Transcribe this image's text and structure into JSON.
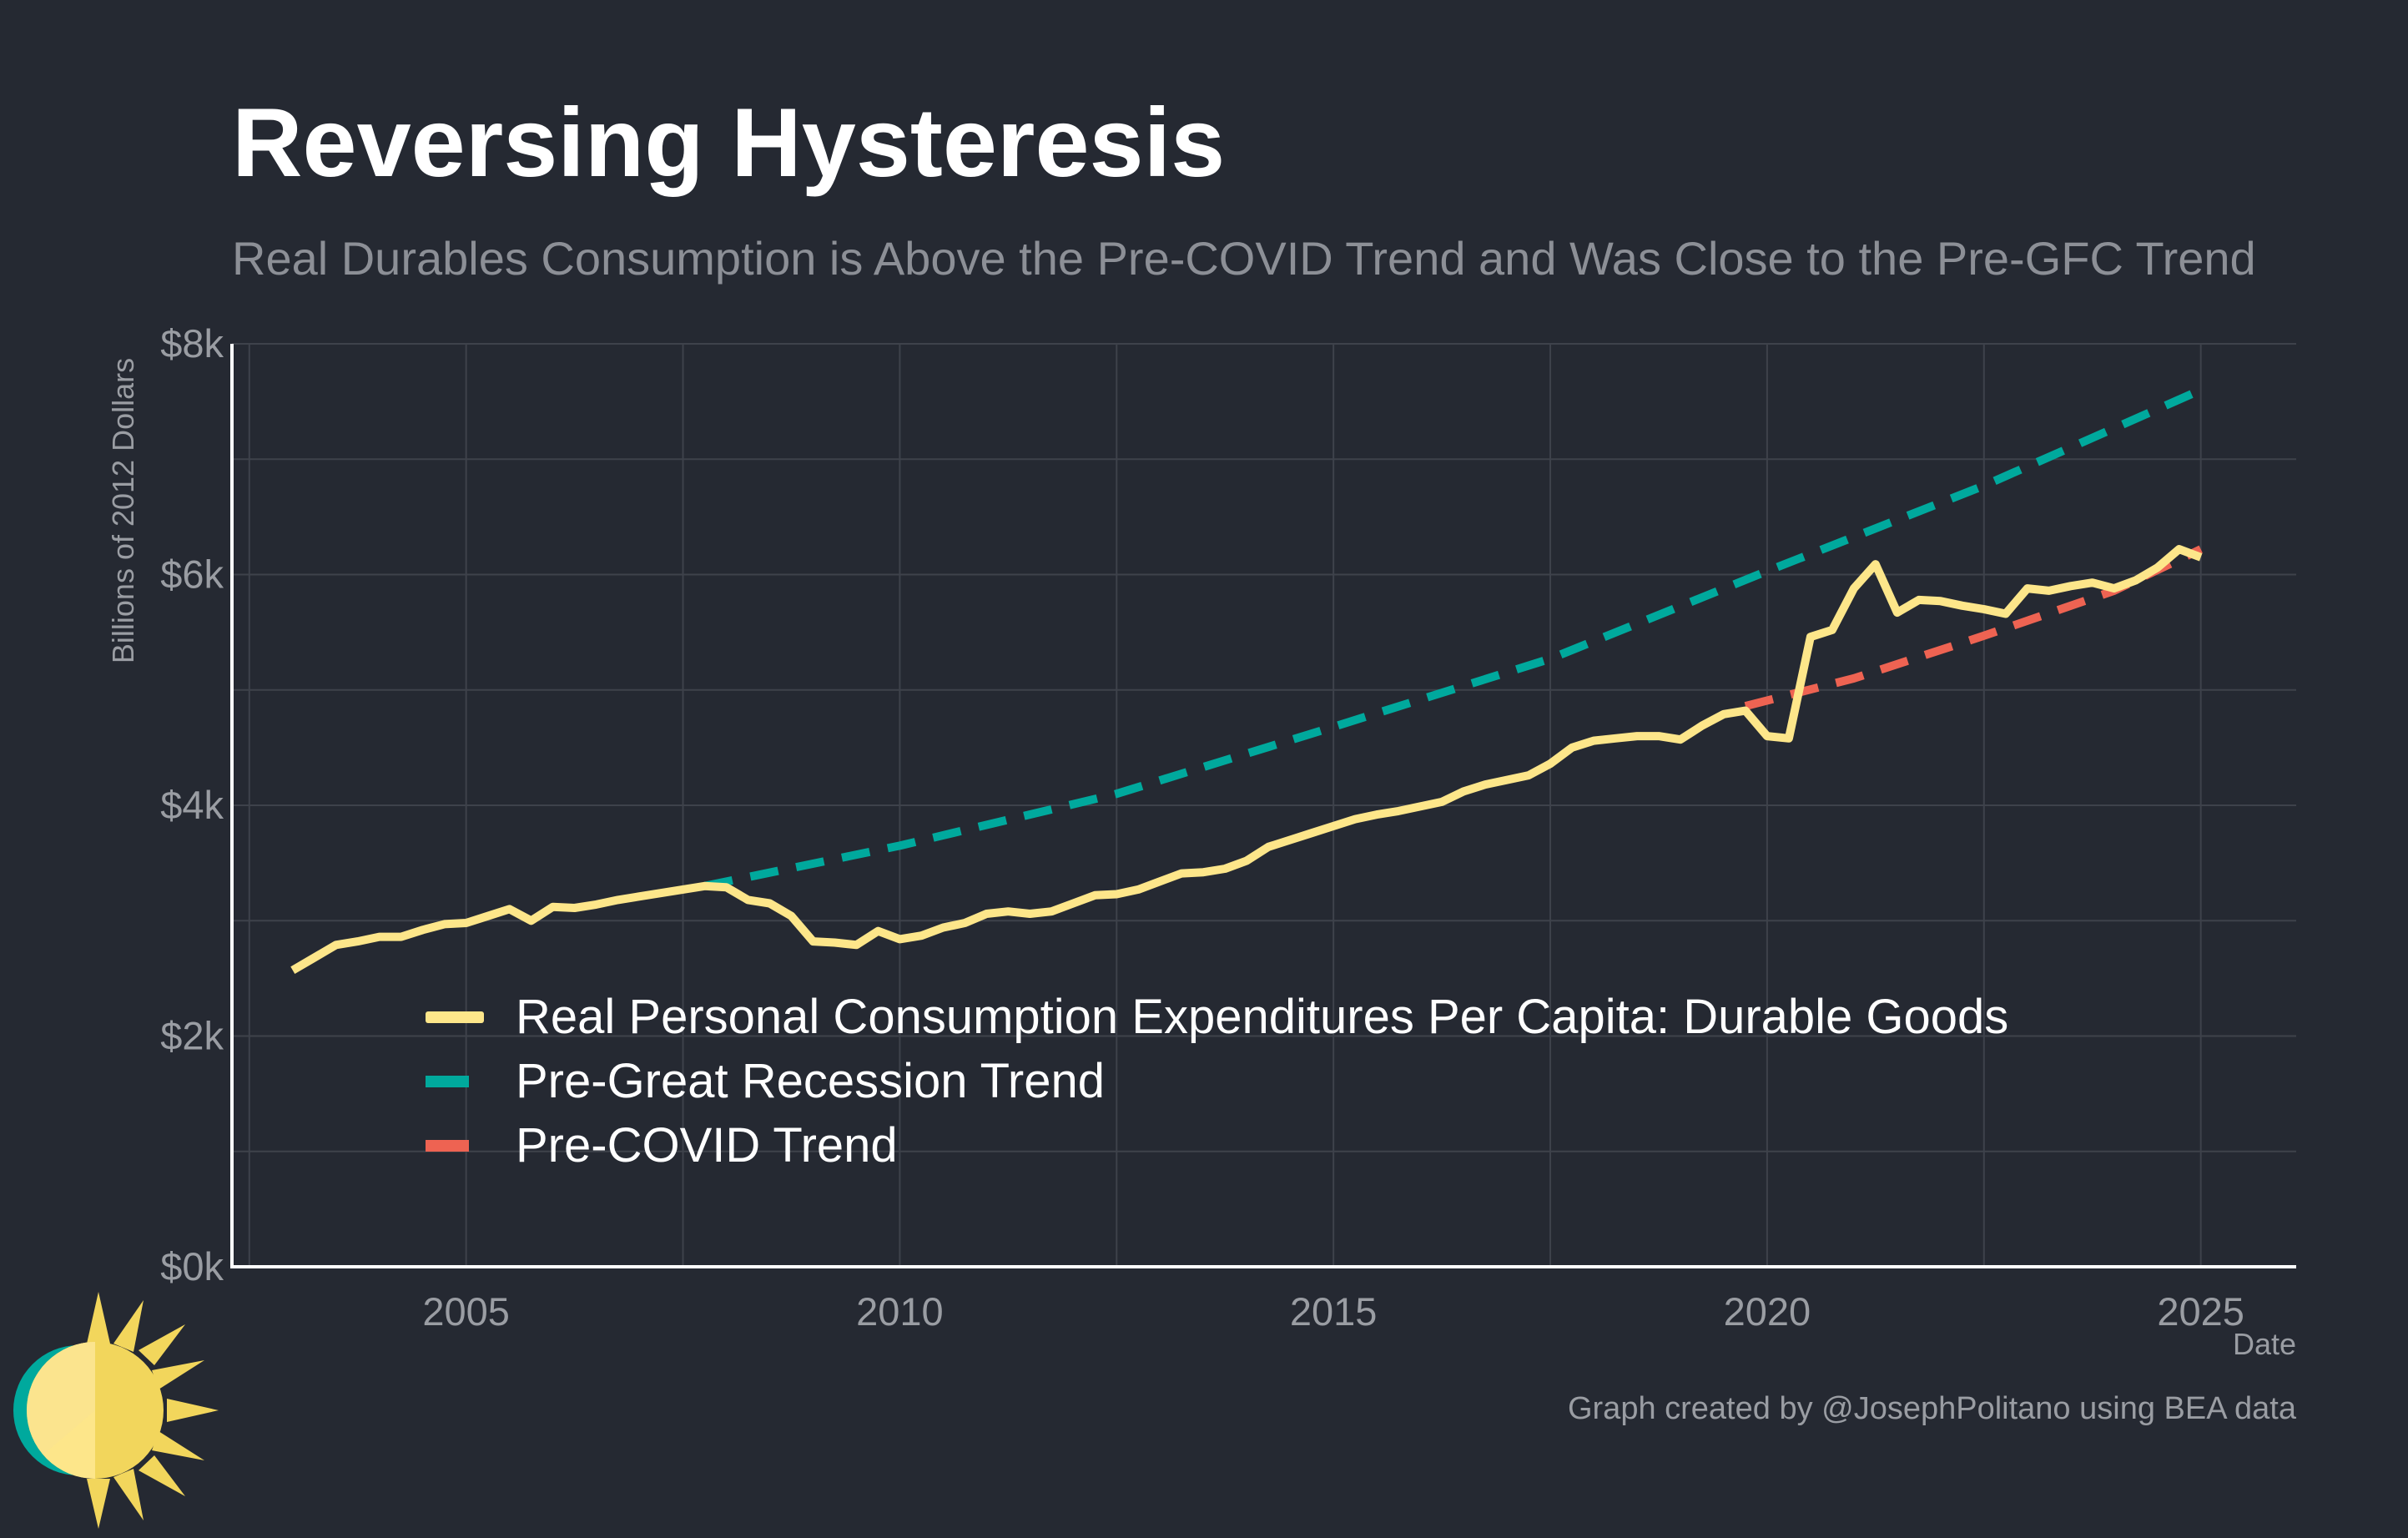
{
  "title": "Reversing Hysteresis",
  "subtitle": "Real Durables Consumption is Above the Pre-COVID Trend and Was Close to the Pre-GFC Trend",
  "credit": "Graph created by @JosephPolitano using BEA data",
  "colors": {
    "background": "#252932",
    "pce": "#fde68a",
    "gfc_trend": "#00a99d",
    "covid_trend": "#ee6352",
    "grid": "#3e424b",
    "axis": "#ffffff",
    "text_muted": "#9a9da3"
  },
  "logo": {
    "icon": "sun-logo-icon"
  },
  "chart_data": {
    "type": "line",
    "title": "Reversing Hysteresis",
    "subtitle": "Real Durables Consumption is Above the Pre-COVID Trend and Was Close to the Pre-GFC Trend",
    "xlabel": "Date",
    "ylabel": "Billions of 2012 Dollars",
    "xlim": [
      2002.3,
      2026.1
    ],
    "ylim": [
      0,
      8000
    ],
    "x_ticks": [
      2005,
      2010,
      2015,
      2020,
      2025
    ],
    "x_tick_labels": [
      "2005",
      "2010",
      "2015",
      "2020",
      "2025"
    ],
    "y_ticks": [
      0,
      2000,
      4000,
      6000,
      8000
    ],
    "y_tick_labels": [
      "$0k",
      "$2k",
      "$4k",
      "$6k",
      "$8k"
    ],
    "grid": true,
    "legend_position": "bottom-left",
    "series": [
      {
        "name": "Real Personal Consumption Expenditures Per Capita: Durable Goods",
        "style": "solid",
        "color": "#fde68a",
        "points": [
          [
            2003.0,
            2570
          ],
          [
            2003.25,
            2680
          ],
          [
            2003.5,
            2790
          ],
          [
            2003.75,
            2820
          ],
          [
            2004.0,
            2860
          ],
          [
            2004.25,
            2860
          ],
          [
            2004.5,
            2920
          ],
          [
            2004.75,
            2970
          ],
          [
            2005.0,
            2980
          ],
          [
            2005.25,
            3040
          ],
          [
            2005.5,
            3100
          ],
          [
            2005.75,
            3000
          ],
          [
            2006.0,
            3120
          ],
          [
            2006.25,
            3110
          ],
          [
            2006.5,
            3140
          ],
          [
            2006.75,
            3180
          ],
          [
            2007.0,
            3210
          ],
          [
            2007.25,
            3240
          ],
          [
            2007.5,
            3270
          ],
          [
            2007.75,
            3300
          ],
          [
            2008.0,
            3290
          ],
          [
            2008.25,
            3180
          ],
          [
            2008.5,
            3150
          ],
          [
            2008.75,
            3040
          ],
          [
            2009.0,
            2820
          ],
          [
            2009.25,
            2810
          ],
          [
            2009.5,
            2790
          ],
          [
            2009.75,
            2910
          ],
          [
            2010.0,
            2840
          ],
          [
            2010.25,
            2870
          ],
          [
            2010.5,
            2940
          ],
          [
            2010.75,
            2980
          ],
          [
            2011.0,
            3060
          ],
          [
            2011.25,
            3080
          ],
          [
            2011.5,
            3060
          ],
          [
            2011.75,
            3080
          ],
          [
            2012.0,
            3150
          ],
          [
            2012.25,
            3220
          ],
          [
            2012.5,
            3230
          ],
          [
            2012.75,
            3270
          ],
          [
            2013.0,
            3340
          ],
          [
            2013.25,
            3410
          ],
          [
            2013.5,
            3420
          ],
          [
            2013.75,
            3450
          ],
          [
            2014.0,
            3520
          ],
          [
            2014.25,
            3640
          ],
          [
            2014.5,
            3700
          ],
          [
            2014.75,
            3760
          ],
          [
            2015.0,
            3820
          ],
          [
            2015.25,
            3880
          ],
          [
            2015.5,
            3920
          ],
          [
            2015.75,
            3950
          ],
          [
            2016.0,
            3990
          ],
          [
            2016.25,
            4030
          ],
          [
            2016.5,
            4120
          ],
          [
            2016.75,
            4180
          ],
          [
            2017.0,
            4220
          ],
          [
            2017.25,
            4260
          ],
          [
            2017.5,
            4360
          ],
          [
            2017.75,
            4500
          ],
          [
            2018.0,
            4560
          ],
          [
            2018.25,
            4580
          ],
          [
            2018.5,
            4600
          ],
          [
            2018.75,
            4600
          ],
          [
            2019.0,
            4570
          ],
          [
            2019.25,
            4690
          ],
          [
            2019.5,
            4790
          ],
          [
            2019.75,
            4820
          ],
          [
            2020.0,
            4600
          ],
          [
            2020.25,
            4580
          ],
          [
            2020.5,
            5460
          ],
          [
            2020.75,
            5520
          ],
          [
            2021.0,
            5880
          ],
          [
            2021.25,
            6090
          ],
          [
            2021.5,
            5670
          ],
          [
            2021.75,
            5780
          ],
          [
            2022.0,
            5770
          ],
          [
            2022.25,
            5730
          ],
          [
            2022.5,
            5700
          ],
          [
            2022.75,
            5660
          ],
          [
            2023.0,
            5880
          ],
          [
            2023.25,
            5860
          ],
          [
            2023.5,
            5900
          ],
          [
            2023.75,
            5930
          ],
          [
            2024.0,
            5880
          ],
          [
            2024.25,
            5950
          ],
          [
            2024.5,
            6060
          ],
          [
            2024.75,
            6220
          ],
          [
            2025.0,
            6150
          ]
        ]
      },
      {
        "name": "Pre-Great Recession Trend",
        "style": "dashed",
        "color": "#00a99d",
        "points": [
          [
            2007.75,
            3300
          ],
          [
            2010.0,
            3650
          ],
          [
            2012.5,
            4100
          ],
          [
            2015.0,
            4680
          ],
          [
            2017.5,
            5270
          ],
          [
            2020.0,
            6030
          ],
          [
            2022.5,
            6770
          ],
          [
            2025.0,
            7600
          ]
        ]
      },
      {
        "name": "Pre-COVID Trend",
        "style": "dashed",
        "color": "#ee6352",
        "points": [
          [
            2019.75,
            4860
          ],
          [
            2021.0,
            5100
          ],
          [
            2022.5,
            5470
          ],
          [
            2024.0,
            5860
          ],
          [
            2025.0,
            6220
          ]
        ]
      }
    ]
  }
}
